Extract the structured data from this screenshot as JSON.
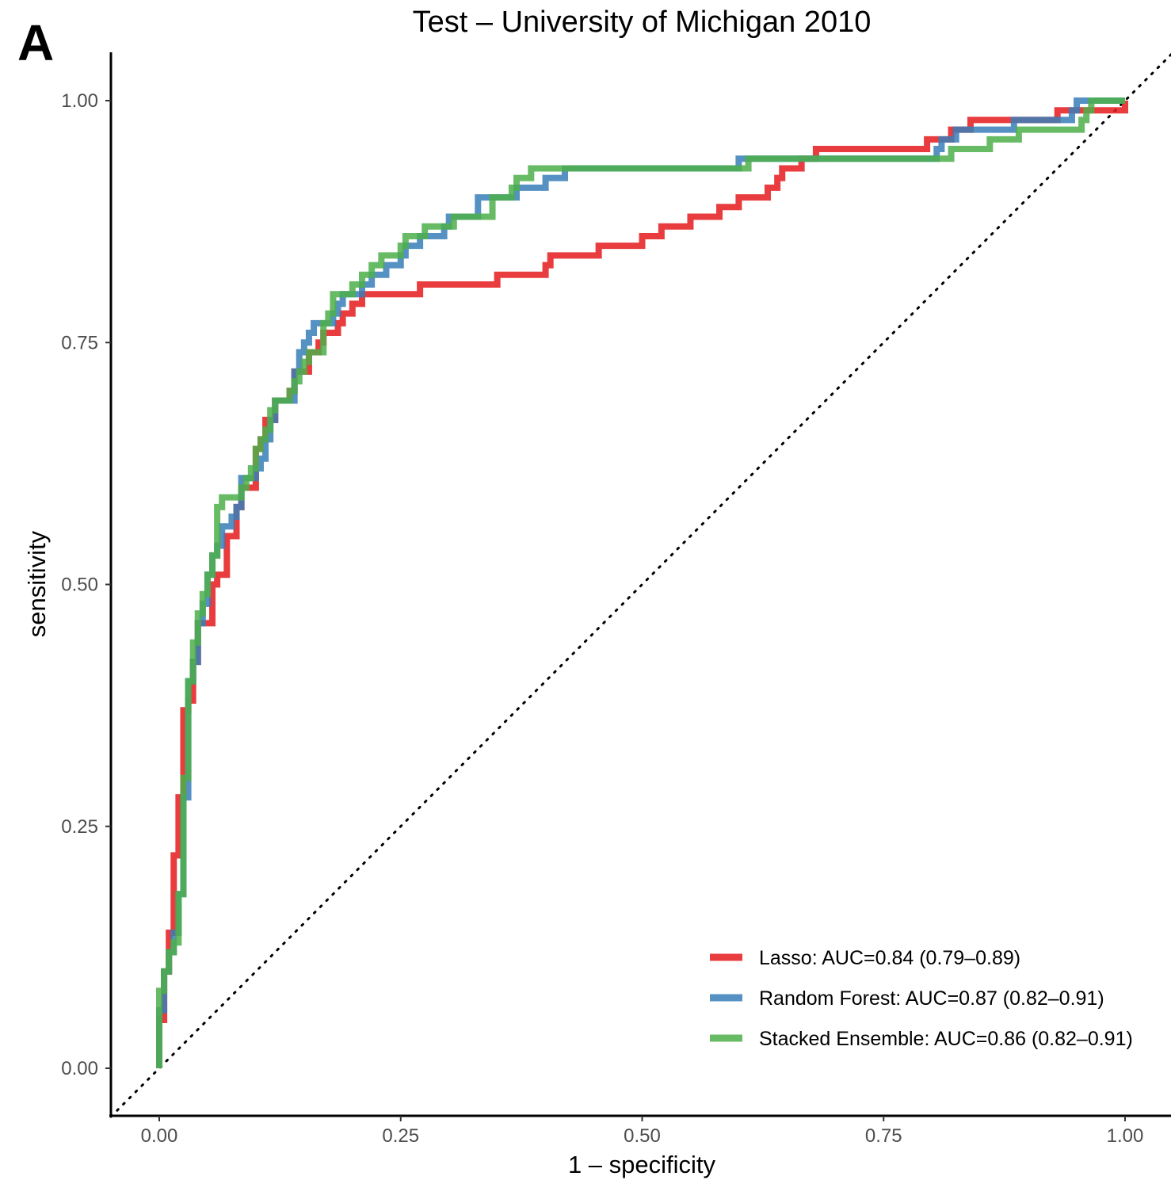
{
  "panel_label": "A",
  "chart_data": {
    "type": "line",
    "title": "Test – University of Michigan 2010",
    "xlabel": "1 – specificity",
    "ylabel": "sensitivity",
    "xlim": [
      -0.05,
      1.05
    ],
    "ylim": [
      -0.05,
      1.05
    ],
    "xticks": [
      0,
      0.25,
      0.5,
      0.75,
      1.0
    ],
    "xtick_labels": [
      "0.00",
      "0.25",
      "0.50",
      "0.75",
      "1.00"
    ],
    "yticks": [
      0,
      0.25,
      0.5,
      0.75,
      1.0
    ],
    "ytick_labels": [
      "0.00",
      "0.25",
      "0.50",
      "0.75",
      "1.00"
    ],
    "grid": false,
    "legend_position": "bottom-right",
    "reference_line": {
      "style": "dotted",
      "from": [
        -0.05,
        -0.05
      ],
      "to": [
        1.05,
        1.05
      ]
    },
    "series": [
      {
        "name": "Lasso: AUC=0.84 (0.79–0.89)",
        "color": "#e41a1c",
        "points": [
          [
            0,
            0
          ],
          [
            0,
            0.05
          ],
          [
            0.005,
            0.1
          ],
          [
            0.01,
            0.12
          ],
          [
            0.01,
            0.14
          ],
          [
            0.015,
            0.16
          ],
          [
            0.015,
            0.22
          ],
          [
            0.02,
            0.28
          ],
          [
            0.025,
            0.32
          ],
          [
            0.025,
            0.37
          ],
          [
            0.03,
            0.37
          ],
          [
            0.03,
            0.38
          ],
          [
            0.035,
            0.38
          ],
          [
            0.035,
            0.42
          ],
          [
            0.04,
            0.46
          ],
          [
            0.05,
            0.46
          ],
          [
            0.055,
            0.48
          ],
          [
            0.055,
            0.5
          ],
          [
            0.06,
            0.51
          ],
          [
            0.065,
            0.51
          ],
          [
            0.07,
            0.53
          ],
          [
            0.07,
            0.55
          ],
          [
            0.075,
            0.55
          ],
          [
            0.08,
            0.58
          ],
          [
            0.085,
            0.6
          ],
          [
            0.09,
            0.6
          ],
          [
            0.1,
            0.62
          ],
          [
            0.1,
            0.64
          ],
          [
            0.105,
            0.65
          ],
          [
            0.11,
            0.67
          ],
          [
            0.12,
            0.69
          ],
          [
            0.13,
            0.69
          ],
          [
            0.135,
            0.7
          ],
          [
            0.14,
            0.72
          ],
          [
            0.15,
            0.72
          ],
          [
            0.155,
            0.74
          ],
          [
            0.16,
            0.74
          ],
          [
            0.165,
            0.75
          ],
          [
            0.17,
            0.76
          ],
          [
            0.185,
            0.77
          ],
          [
            0.19,
            0.78
          ],
          [
            0.2,
            0.79
          ],
          [
            0.21,
            0.8
          ],
          [
            0.27,
            0.8
          ],
          [
            0.27,
            0.81
          ],
          [
            0.35,
            0.81
          ],
          [
            0.35,
            0.82
          ],
          [
            0.4,
            0.82
          ],
          [
            0.4,
            0.83
          ],
          [
            0.405,
            0.84
          ],
          [
            0.45,
            0.84
          ],
          [
            0.455,
            0.85
          ],
          [
            0.5,
            0.85
          ],
          [
            0.5,
            0.86
          ],
          [
            0.52,
            0.86
          ],
          [
            0.52,
            0.87
          ],
          [
            0.54,
            0.87
          ],
          [
            0.55,
            0.88
          ],
          [
            0.57,
            0.88
          ],
          [
            0.58,
            0.89
          ],
          [
            0.6,
            0.89
          ],
          [
            0.6,
            0.9
          ],
          [
            0.625,
            0.9
          ],
          [
            0.63,
            0.91
          ],
          [
            0.64,
            0.92
          ],
          [
            0.645,
            0.93
          ],
          [
            0.66,
            0.93
          ],
          [
            0.665,
            0.94
          ],
          [
            0.68,
            0.94
          ],
          [
            0.68,
            0.95
          ],
          [
            0.79,
            0.95
          ],
          [
            0.795,
            0.96
          ],
          [
            0.82,
            0.96
          ],
          [
            0.82,
            0.97
          ],
          [
            0.84,
            0.97
          ],
          [
            0.84,
            0.98
          ],
          [
            0.93,
            0.98
          ],
          [
            0.93,
            0.99
          ],
          [
            0.95,
            0.99
          ],
          [
            1,
            1
          ]
        ]
      },
      {
        "name": "Random Forest: AUC=0.87 (0.82–0.91)",
        "color": "#377eb8",
        "points": [
          [
            0,
            0
          ],
          [
            0,
            0.06
          ],
          [
            0.005,
            0.1
          ],
          [
            0.01,
            0.12
          ],
          [
            0.015,
            0.14
          ],
          [
            0.02,
            0.18
          ],
          [
            0.025,
            0.22
          ],
          [
            0.025,
            0.28
          ],
          [
            0.03,
            0.3
          ],
          [
            0.03,
            0.4
          ],
          [
            0.035,
            0.42
          ],
          [
            0.04,
            0.46
          ],
          [
            0.045,
            0.48
          ],
          [
            0.05,
            0.51
          ],
          [
            0.055,
            0.53
          ],
          [
            0.06,
            0.54
          ],
          [
            0.065,
            0.56
          ],
          [
            0.07,
            0.56
          ],
          [
            0.075,
            0.57
          ],
          [
            0.08,
            0.58
          ],
          [
            0.085,
            0.61
          ],
          [
            0.095,
            0.61
          ],
          [
            0.1,
            0.62
          ],
          [
            0.105,
            0.63
          ],
          [
            0.11,
            0.65
          ],
          [
            0.115,
            0.67
          ],
          [
            0.12,
            0.69
          ],
          [
            0.135,
            0.69
          ],
          [
            0.14,
            0.7
          ],
          [
            0.14,
            0.72
          ],
          [
            0.145,
            0.74
          ],
          [
            0.15,
            0.75
          ],
          [
            0.155,
            0.76
          ],
          [
            0.16,
            0.77
          ],
          [
            0.175,
            0.77
          ],
          [
            0.18,
            0.78
          ],
          [
            0.185,
            0.79
          ],
          [
            0.19,
            0.8
          ],
          [
            0.21,
            0.81
          ],
          [
            0.22,
            0.82
          ],
          [
            0.235,
            0.83
          ],
          [
            0.245,
            0.83
          ],
          [
            0.25,
            0.84
          ],
          [
            0.255,
            0.85
          ],
          [
            0.27,
            0.86
          ],
          [
            0.29,
            0.86
          ],
          [
            0.295,
            0.87
          ],
          [
            0.3,
            0.88
          ],
          [
            0.33,
            0.88
          ],
          [
            0.33,
            0.9
          ],
          [
            0.36,
            0.9
          ],
          [
            0.37,
            0.91
          ],
          [
            0.4,
            0.91
          ],
          [
            0.4,
            0.92
          ],
          [
            0.42,
            0.92
          ],
          [
            0.42,
            0.93
          ],
          [
            0.6,
            0.93
          ],
          [
            0.6,
            0.94
          ],
          [
            0.8,
            0.94
          ],
          [
            0.805,
            0.95
          ],
          [
            0.81,
            0.96
          ],
          [
            0.82,
            0.96
          ],
          [
            0.825,
            0.97
          ],
          [
            0.88,
            0.97
          ],
          [
            0.885,
            0.98
          ],
          [
            0.94,
            0.98
          ],
          [
            0.945,
            0.99
          ],
          [
            0.95,
            0.99
          ],
          [
            0.95,
            1
          ],
          [
            1,
            1
          ]
        ]
      },
      {
        "name": "Stacked Ensemble: AUC=0.86 (0.82–0.91)",
        "color": "#4daf4a",
        "points": [
          [
            0,
            0
          ],
          [
            0,
            0.08
          ],
          [
            0.005,
            0.1
          ],
          [
            0.01,
            0.12
          ],
          [
            0.015,
            0.13
          ],
          [
            0.02,
            0.14
          ],
          [
            0.02,
            0.18
          ],
          [
            0.025,
            0.2
          ],
          [
            0.025,
            0.3
          ],
          [
            0.03,
            0.34
          ],
          [
            0.03,
            0.4
          ],
          [
            0.035,
            0.44
          ],
          [
            0.04,
            0.47
          ],
          [
            0.045,
            0.49
          ],
          [
            0.05,
            0.51
          ],
          [
            0.055,
            0.53
          ],
          [
            0.06,
            0.56
          ],
          [
            0.06,
            0.58
          ],
          [
            0.065,
            0.59
          ],
          [
            0.08,
            0.59
          ],
          [
            0.085,
            0.6
          ],
          [
            0.09,
            0.61
          ],
          [
            0.095,
            0.62
          ],
          [
            0.1,
            0.64
          ],
          [
            0.105,
            0.65
          ],
          [
            0.11,
            0.66
          ],
          [
            0.115,
            0.68
          ],
          [
            0.12,
            0.69
          ],
          [
            0.13,
            0.69
          ],
          [
            0.135,
            0.7
          ],
          [
            0.14,
            0.71
          ],
          [
            0.145,
            0.72
          ],
          [
            0.15,
            0.73
          ],
          [
            0.155,
            0.74
          ],
          [
            0.165,
            0.74
          ],
          [
            0.17,
            0.77
          ],
          [
            0.175,
            0.78
          ],
          [
            0.18,
            0.8
          ],
          [
            0.2,
            0.8
          ],
          [
            0.2,
            0.81
          ],
          [
            0.21,
            0.82
          ],
          [
            0.22,
            0.83
          ],
          [
            0.23,
            0.84
          ],
          [
            0.245,
            0.84
          ],
          [
            0.25,
            0.85
          ],
          [
            0.255,
            0.86
          ],
          [
            0.27,
            0.86
          ],
          [
            0.275,
            0.87
          ],
          [
            0.3,
            0.87
          ],
          [
            0.305,
            0.88
          ],
          [
            0.34,
            0.88
          ],
          [
            0.345,
            0.9
          ],
          [
            0.36,
            0.9
          ],
          [
            0.365,
            0.91
          ],
          [
            0.37,
            0.92
          ],
          [
            0.38,
            0.92
          ],
          [
            0.385,
            0.93
          ],
          [
            0.6,
            0.93
          ],
          [
            0.61,
            0.94
          ],
          [
            0.81,
            0.94
          ],
          [
            0.82,
            0.95
          ],
          [
            0.85,
            0.95
          ],
          [
            0.86,
            0.96
          ],
          [
            0.88,
            0.96
          ],
          [
            0.89,
            0.97
          ],
          [
            0.95,
            0.97
          ],
          [
            0.955,
            0.98
          ],
          [
            0.96,
            0.99
          ],
          [
            0.965,
            1
          ],
          [
            1,
            1
          ]
        ]
      }
    ]
  }
}
